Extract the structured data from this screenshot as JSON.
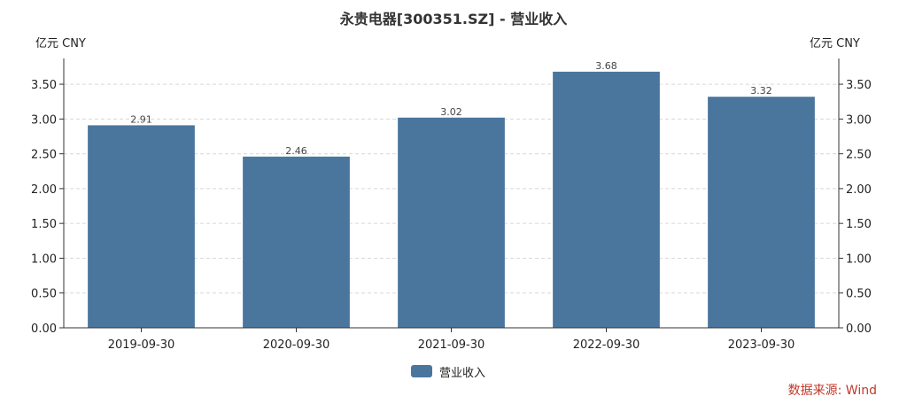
{
  "page_title": "永贵电器[300351.SZ] - 营业收入",
  "units": {
    "left": "亿元  CNY",
    "right": "亿元  CNY"
  },
  "legend": {
    "label": "营业收入"
  },
  "source": "数据来源: Wind",
  "colors": {
    "bar": "#4a769e",
    "axis": "#333333",
    "grid": "#d8d8d8",
    "source": "#c0392b"
  },
  "chart_data": {
    "type": "bar",
    "title": "永贵电器[300351.SZ] - 营业收入",
    "categories": [
      "2019-09-30",
      "2020-09-30",
      "2021-09-30",
      "2022-09-30",
      "2023-09-30"
    ],
    "series": [
      {
        "name": "营业收入",
        "values": [
          2.91,
          2.46,
          3.02,
          3.68,
          3.32
        ]
      }
    ],
    "data_labels": [
      "2.91",
      "2.46",
      "3.02",
      "3.68",
      "3.32"
    ],
    "y_ticks": [
      "0.00",
      "0.50",
      "1.00",
      "1.50",
      "2.00",
      "2.50",
      "3.00",
      "3.50"
    ],
    "ylim": [
      0,
      3.87
    ],
    "ylabel": "亿元  CNY",
    "grid": true,
    "legend_position": "bottom-center",
    "dual_y_axis": true
  }
}
